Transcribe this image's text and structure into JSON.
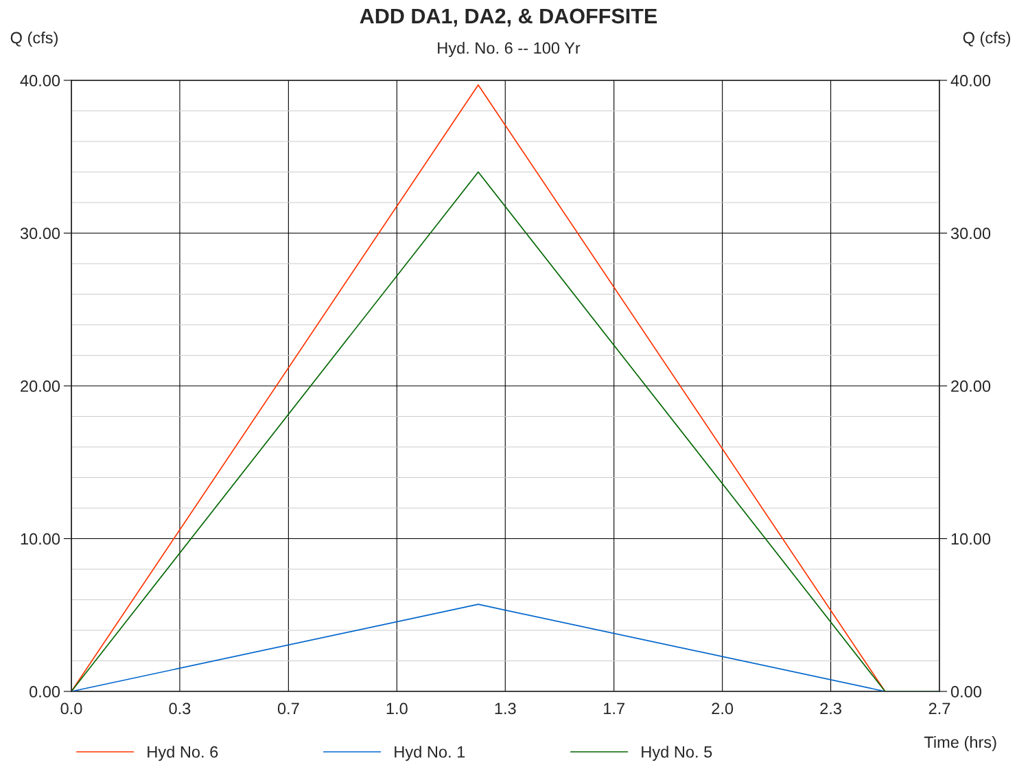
{
  "chart_data": {
    "type": "line",
    "title": "ADD DA1, DA2, & DAOFFSITE",
    "subtitle": "Hyd. No. 6 -- 100 Yr",
    "xlabel": "Time (hrs)",
    "ylabel": "Q (cfs)",
    "y2label": "Q (cfs)",
    "x": [
      0,
      1.25,
      2.5,
      2.667
    ],
    "series": [
      {
        "name": "Hyd No. 6",
        "color": "#ff3300",
        "values": [
          0,
          39.7,
          0,
          0
        ]
      },
      {
        "name": "Hyd No. 1",
        "color": "#0066cc",
        "values": [
          0,
          5.7,
          0,
          0
        ]
      },
      {
        "name": "Hyd No. 5",
        "color": "#006600",
        "values": [
          0,
          34.0,
          0,
          0
        ]
      }
    ],
    "xlim": [
      0,
      2.667
    ],
    "xticks": [
      {
        "value": 0,
        "label": "0.0"
      },
      {
        "value": 0.333,
        "label": "0.3"
      },
      {
        "value": 0.667,
        "label": "0.7"
      },
      {
        "value": 1.0,
        "label": "1.0"
      },
      {
        "value": 1.333,
        "label": "1.3"
      },
      {
        "value": 1.667,
        "label": "1.7"
      },
      {
        "value": 2.0,
        "label": "2.0"
      },
      {
        "value": 2.333,
        "label": "2.3"
      },
      {
        "value": 2.667,
        "label": "2.7"
      }
    ],
    "ylim": [
      0,
      40
    ],
    "yticks": [
      {
        "value": 0,
        "label": "0.00"
      },
      {
        "value": 2,
        "label": null
      },
      {
        "value": 4,
        "label": null
      },
      {
        "value": 6,
        "label": null
      },
      {
        "value": 8,
        "label": null
      },
      {
        "value": 10,
        "label": "10.00"
      },
      {
        "value": 12,
        "label": null
      },
      {
        "value": 14,
        "label": null
      },
      {
        "value": 16,
        "label": null
      },
      {
        "value": 18,
        "label": null
      },
      {
        "value": 20,
        "label": "20.00"
      },
      {
        "value": 22,
        "label": null
      },
      {
        "value": 24,
        "label": null
      },
      {
        "value": 26,
        "label": null
      },
      {
        "value": 28,
        "label": null
      },
      {
        "value": 30,
        "label": "30.00"
      },
      {
        "value": 32,
        "label": null
      },
      {
        "value": 34,
        "label": null
      },
      {
        "value": 36,
        "label": null
      },
      {
        "value": 38,
        "label": null
      },
      {
        "value": 40,
        "label": "40.00"
      }
    ],
    "y2lim": [
      0,
      40
    ],
    "y2ticks": [
      {
        "value": 0,
        "label": "0.00"
      },
      {
        "value": 10,
        "label": "10.00"
      },
      {
        "value": 20,
        "label": "20.00"
      },
      {
        "value": 30,
        "label": "30.00"
      },
      {
        "value": 40,
        "label": "40.00"
      }
    ],
    "grid": true,
    "legend": "bottom",
    "marker": "none",
    "line_style": "solid"
  }
}
